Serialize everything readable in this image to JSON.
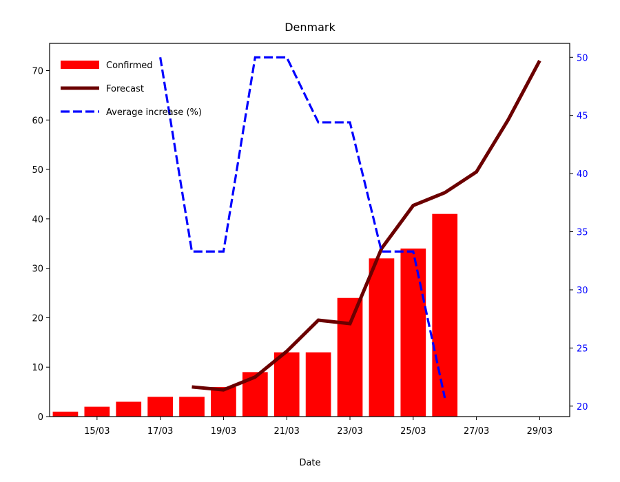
{
  "chart_data": {
    "type": "bar",
    "title": "Denmark",
    "xlabel": "Date",
    "ylabel": "",
    "ylabel_right": "",
    "x_ticks": [
      "15/03",
      "17/03",
      "19/03",
      "21/03",
      "23/03",
      "25/03",
      "27/03",
      "29/03"
    ],
    "x_tick_days": [
      15,
      17,
      19,
      21,
      23,
      25,
      27,
      29
    ],
    "xlim_days": [
      13.5,
      29.95
    ],
    "ylim": [
      0,
      75.5
    ],
    "ylim_right": [
      19.1,
      51.2
    ],
    "y_ticks": [
      0,
      10,
      20,
      30,
      40,
      50,
      60,
      70
    ],
    "y_ticks_right": [
      20,
      25,
      30,
      35,
      40,
      45,
      50
    ],
    "legend_position": "top-left",
    "series": [
      {
        "name": "Confirmed",
        "kind": "bar",
        "axis": "left",
        "color": "#ff0000",
        "x": [
          "14/03",
          "15/03",
          "16/03",
          "17/03",
          "18/03",
          "19/03",
          "20/03",
          "21/03",
          "22/03",
          "23/03",
          "24/03",
          "25/03",
          "26/03"
        ],
        "x_days": [
          14,
          15,
          16,
          17,
          18,
          19,
          20,
          21,
          22,
          23,
          24,
          25,
          26
        ],
        "values": [
          1,
          2,
          3,
          4,
          4,
          6,
          9,
          13,
          13,
          24,
          32,
          34,
          41
        ]
      },
      {
        "name": "Forecast",
        "kind": "line",
        "axis": "left",
        "color": "#6b0000",
        "x": [
          "18/03",
          "19/03",
          "20/03",
          "21/03",
          "22/03",
          "23/03",
          "24/03",
          "25/03",
          "26/03",
          "27/03",
          "28/03",
          "29/03"
        ],
        "x_days": [
          18,
          19,
          20,
          21,
          22,
          23,
          24,
          25,
          26,
          27,
          28,
          29
        ],
        "values": [
          6,
          5.4,
          8,
          13.2,
          19.5,
          18.8,
          34,
          42.7,
          45.3,
          49.5,
          60,
          72
        ]
      },
      {
        "name": "Average increase (%)",
        "kind": "dashed-line",
        "axis": "right",
        "color": "#0000ff",
        "x": [
          "17/03",
          "18/03",
          "19/03",
          "20/03",
          "21/03",
          "22/03",
          "23/03",
          "24/03",
          "25/03",
          "26/03"
        ],
        "x_days": [
          17,
          18,
          19,
          20,
          21,
          22,
          23,
          24,
          25,
          26
        ],
        "values": [
          50,
          33.3,
          33.3,
          50,
          50,
          44.4,
          44.4,
          33.3,
          33.3,
          20.7
        ]
      }
    ]
  }
}
